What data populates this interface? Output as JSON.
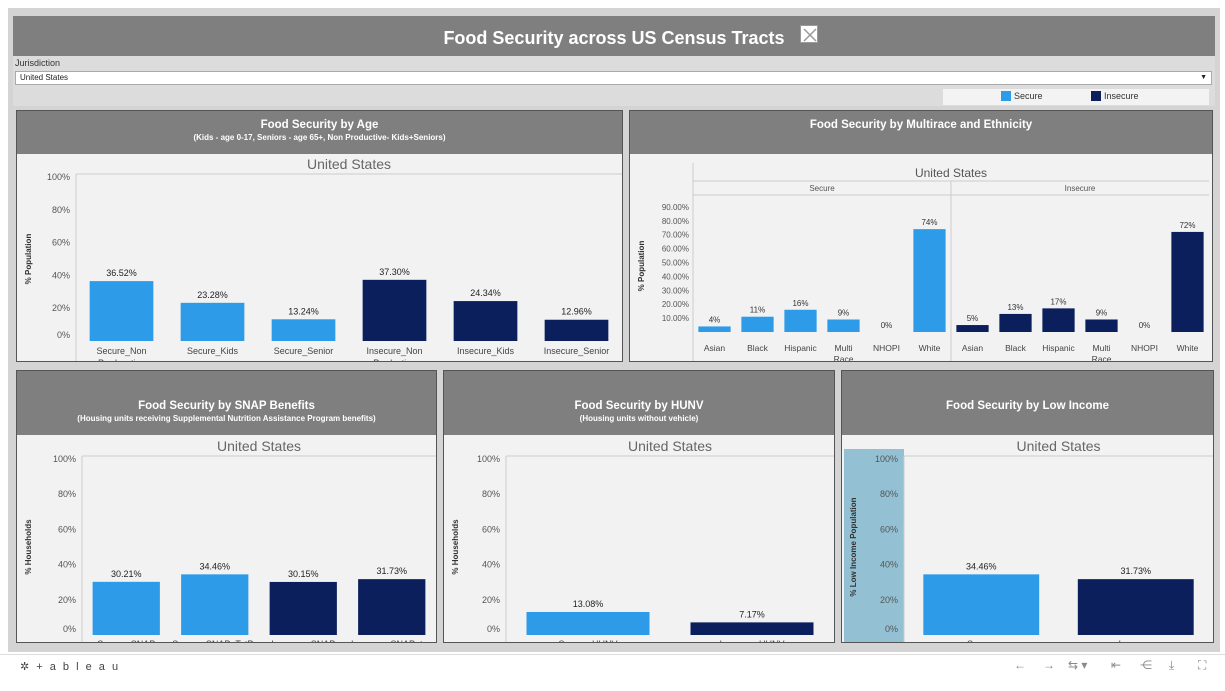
{
  "dashboard": {
    "title": "Food Security across US Census Tracts"
  },
  "filter": {
    "label": "Jurisdiction",
    "value": "United States"
  },
  "legend": [
    {
      "label": "Secure",
      "color": "#2e9be8"
    },
    {
      "label": "Insecure",
      "color": "#0b1f5c"
    }
  ],
  "colors": {
    "secure": "#2e9be8",
    "insecure": "#0b1f5c",
    "header": "#7f7f7f",
    "low_income_band": "#93c1d3"
  },
  "panels": {
    "age": {
      "title": "Food Security by Age",
      "subtitle": "(Kids - age 0-17, Seniors - age 65+, Non Productive- Kids+Seniors)"
    },
    "race": {
      "title": "Food Security by Multirace and Ethnicity",
      "subtitle": ""
    },
    "snap": {
      "title": "Food Security by SNAP Benefits",
      "subtitle": "(Housing units receiving Supplemental Nutrition Assistance Program benefits)"
    },
    "hunv": {
      "title": "Food Security by HUNV",
      "subtitle": "(Housing units without vehicle)"
    },
    "income": {
      "title": "Food Security by Low Income",
      "subtitle": ""
    }
  },
  "chart_data": [
    {
      "id": "age",
      "type": "bar",
      "header": "United States",
      "ylabel": "% Population",
      "ylim": [
        0,
        100
      ],
      "yticks": [
        0,
        20,
        40,
        60,
        80,
        100
      ],
      "ytick_labels": [
        "0%",
        "20%",
        "40%",
        "60%",
        "80%",
        "100%"
      ],
      "categories": [
        "Secure_Non Prodcuctive",
        "Secure_Kids",
        "Secure_Senior",
        "Insecure_Non Productive",
        "Insecure_Kids",
        "Insecure_Senior"
      ],
      "values": [
        36.52,
        23.28,
        13.24,
        37.3,
        24.34,
        12.96
      ],
      "value_labels": [
        "36.52%",
        "23.28%",
        "13.24%",
        "37.30%",
        "24.34%",
        "12.96%"
      ],
      "groups": [
        "secure",
        "secure",
        "secure",
        "insecure",
        "insecure",
        "insecure"
      ]
    },
    {
      "id": "race",
      "type": "bar",
      "header": "United States",
      "ylabel": "% Population",
      "ylim": [
        0,
        100
      ],
      "yticks": [
        10,
        20,
        30,
        40,
        50,
        60,
        70,
        80,
        90
      ],
      "ytick_labels": [
        "10.00%",
        "20.00%",
        "30.00%",
        "40.00%",
        "50.00%",
        "60.00%",
        "70.00%",
        "80.00%",
        "90.00%"
      ],
      "panes": [
        {
          "name": "Secure",
          "group": "secure",
          "categories": [
            "Asian",
            "Black",
            "Hispanic",
            "Multi Race",
            "NHOPI",
            "White"
          ],
          "values": [
            4,
            11,
            16,
            9,
            0,
            74
          ],
          "value_labels": [
            "4%",
            "11%",
            "16%",
            "9%",
            "0%",
            "74%"
          ]
        },
        {
          "name": "Insecure",
          "group": "insecure",
          "categories": [
            "Asian",
            "Black",
            "Hispanic",
            "Multi Race",
            "NHOPI",
            "White"
          ],
          "values": [
            5,
            13,
            17,
            9,
            0,
            72
          ],
          "value_labels": [
            "5%",
            "13%",
            "17%",
            "9%",
            "0%",
            "72%"
          ]
        }
      ]
    },
    {
      "id": "snap",
      "type": "bar",
      "header": "United States",
      "ylabel": "% Households",
      "ylim": [
        0,
        100
      ],
      "yticks": [
        0,
        20,
        40,
        60,
        80,
        100
      ],
      "ytick_labels": [
        "0%",
        "20%",
        "40%",
        "60%",
        "80%",
        "100%"
      ],
      "categories": [
        "Secure_SNAP",
        "Secure_SNAP_TotP..",
        "Insecure_SNAP",
        "Insecure_SNAP_to.."
      ],
      "values": [
        30.21,
        34.46,
        30.15,
        31.73
      ],
      "value_labels": [
        "30.21%",
        "34.46%",
        "30.15%",
        "31.73%"
      ],
      "groups": [
        "secure",
        "secure",
        "insecure",
        "insecure"
      ]
    },
    {
      "id": "hunv",
      "type": "bar",
      "header": "United States",
      "ylabel": "% Households",
      "ylim": [
        0,
        100
      ],
      "yticks": [
        0,
        20,
        40,
        60,
        80,
        100
      ],
      "ytick_labels": [
        "0%",
        "20%",
        "40%",
        "60%",
        "80%",
        "100%"
      ],
      "categories": [
        "Secure_HUNV",
        "Insecure_HUNV"
      ],
      "values": [
        13.08,
        7.17
      ],
      "value_labels": [
        "13.08%",
        "7.17%"
      ],
      "groups": [
        "secure",
        "insecure"
      ]
    },
    {
      "id": "income",
      "type": "bar",
      "header": "United States",
      "ylabel": "% Low Income Population",
      "ylim": [
        0,
        100
      ],
      "yticks": [
        0,
        20,
        40,
        60,
        80,
        100
      ],
      "ytick_labels": [
        "0%",
        "20%",
        "40%",
        "60%",
        "80%",
        "100%"
      ],
      "categories": [
        "Secure",
        "Insecure"
      ],
      "values": [
        34.46,
        31.73
      ],
      "value_labels": [
        "34.46%",
        "31.73%"
      ],
      "groups": [
        "secure",
        "insecure"
      ]
    }
  ],
  "footer": {
    "logo_text": "+ a b l e a u"
  }
}
